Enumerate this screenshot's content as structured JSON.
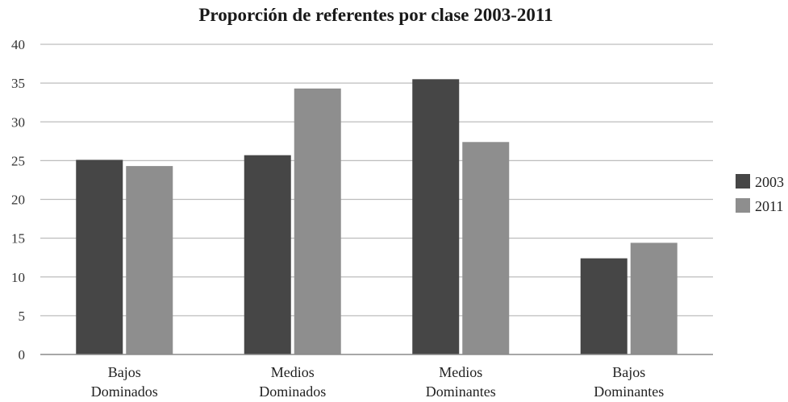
{
  "chart_data": {
    "type": "bar",
    "title": "Proporción de referentes por clase 2003-2011",
    "categories": [
      [
        "Bajos",
        "Dominados"
      ],
      [
        "Medios",
        "Dominados"
      ],
      [
        "Medios",
        "Dominantes"
      ],
      [
        "Bajos",
        "Dominantes"
      ]
    ],
    "series": [
      {
        "name": "2003",
        "color": "#464646",
        "values": [
          25.1,
          25.7,
          35.5,
          12.4
        ]
      },
      {
        "name": "2011",
        "color": "#8e8e8e",
        "values": [
          24.3,
          34.3,
          27.4,
          14.4
        ]
      }
    ],
    "yticks": [
      "0",
      "5",
      "10",
      "15",
      "20",
      "25",
      "30",
      "35",
      "40"
    ],
    "ylim": [
      0,
      40
    ],
    "grid": true,
    "legend": "right"
  }
}
